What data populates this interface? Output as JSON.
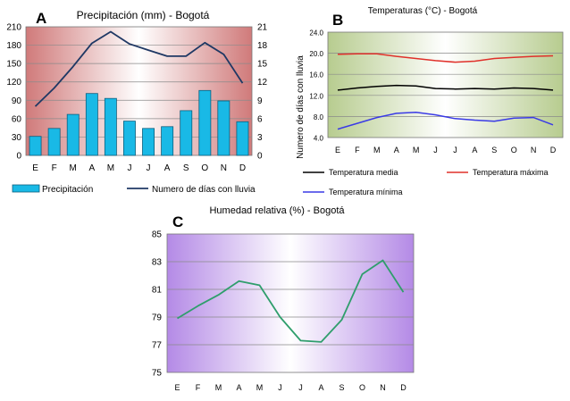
{
  "chart_data": [
    {
      "panel_letter": "A",
      "type": "bar+line",
      "title": "Precipitación (mm) - Bogotá",
      "categories": [
        "E",
        "F",
        "M",
        "A",
        "M",
        "J",
        "J",
        "A",
        "S",
        "O",
        "N",
        "D"
      ],
      "series": [
        {
          "name": "Precipitación",
          "type": "bar",
          "axis": "left",
          "values": [
            31,
            44,
            67,
            101,
            93,
            56,
            44,
            47,
            73,
            106,
            89,
            55
          ]
        },
        {
          "name": "Numero de días con lluvia",
          "type": "line",
          "axis": "right",
          "values": [
            8,
            11,
            14.5,
            18.3,
            20.2,
            18.2,
            17.2,
            16.2,
            16.2,
            18.4,
            16.5,
            11.8
          ]
        }
      ],
      "ylim": [
        0,
        210
      ],
      "yticks": [
        0,
        30,
        60,
        90,
        120,
        150,
        180,
        210
      ],
      "y2lim": [
        0,
        21
      ],
      "y2ticks": [
        0,
        3,
        6,
        9,
        12,
        15,
        18,
        21
      ],
      "legend_position": "bottom",
      "colors": {
        "bar": "#19b9e6",
        "bar_edge": "#0d5f7e",
        "line": "#1f3864",
        "bg_edge": "#d07a7a",
        "bg_center": "#ffffff"
      }
    },
    {
      "panel_letter": "B",
      "type": "line",
      "title": "Temperaturas (°C) - Bogotá",
      "categories": [
        "E",
        "F",
        "M",
        "A",
        "M",
        "J",
        "J",
        "A",
        "S",
        "O",
        "N",
        "D"
      ],
      "ylabel": "Numero de días con lluvia",
      "series": [
        {
          "name": "Temperatura media",
          "color": "#000000",
          "values": [
            13.0,
            13.4,
            13.7,
            13.9,
            13.8,
            13.3,
            13.2,
            13.3,
            13.2,
            13.4,
            13.3,
            13.0
          ]
        },
        {
          "name": "Temperatura máxima",
          "color": "#e0302a",
          "values": [
            19.8,
            19.9,
            19.9,
            19.4,
            19.0,
            18.6,
            18.3,
            18.5,
            19.0,
            19.2,
            19.4,
            19.5
          ]
        },
        {
          "name": "Temperatura mínima",
          "color": "#3a3ae6",
          "values": [
            5.6,
            6.7,
            7.8,
            8.6,
            8.8,
            8.3,
            7.6,
            7.3,
            7.1,
            7.7,
            7.8,
            6.4
          ]
        }
      ],
      "ylim": [
        4,
        24
      ],
      "yticks": [
        "4.0",
        "8.0",
        "12.0",
        "16.0",
        "20.0",
        "24.0"
      ],
      "legend_position": "bottom",
      "colors": {
        "bg_edge": "#b7cc8f",
        "bg_center": "#ffffff"
      }
    },
    {
      "panel_letter": "C",
      "type": "line",
      "title": "Humedad relativa (%) - Bogotá",
      "categories": [
        "E",
        "F",
        "M",
        "A",
        "M",
        "J",
        "J",
        "A",
        "S",
        "O",
        "N",
        "D"
      ],
      "series": [
        {
          "color": "#2f9e6c",
          "values": [
            78.9,
            79.8,
            80.6,
            81.6,
            81.3,
            79.0,
            77.3,
            77.2,
            78.8,
            82.1,
            83.1,
            80.8
          ]
        }
      ],
      "ylim": [
        75,
        85
      ],
      "yticks": [
        75,
        77,
        79,
        81,
        83,
        85
      ],
      "colors": {
        "bg_edge": "#b48ae6",
        "bg_center": "#ffffff"
      }
    }
  ]
}
